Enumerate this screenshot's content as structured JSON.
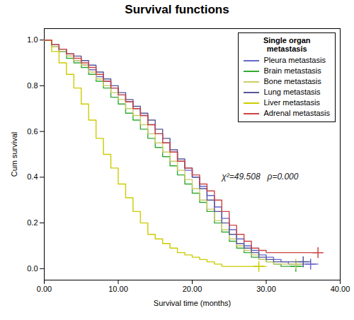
{
  "chart_data": {
    "type": "step",
    "title": "Survival functions",
    "xlabel": "Survival time (months)",
    "ylabel": "Cum survival",
    "xlim": [
      0,
      40
    ],
    "ylim": [
      -0.05,
      1.05
    ],
    "xticks": [
      {
        "value": 0,
        "label": "0.00"
      },
      {
        "value": 10,
        "label": "10.00"
      },
      {
        "value": 20,
        "label": "20.00"
      },
      {
        "value": 30,
        "label": "30.00"
      },
      {
        "value": 40,
        "label": "40.00"
      }
    ],
    "yticks": [
      {
        "value": 0,
        "label": "0.0"
      },
      0.2,
      0.4,
      0.6,
      0.8,
      {
        "value": 1,
        "label": "1.0"
      }
    ],
    "annotation": "χ²=49.508   ρ=0.000",
    "legend_title": "Single organ\nmetastasis",
    "legend": "upper right",
    "grid": false,
    "series": [
      {
        "name": "Pleura metastasis",
        "color": "#6666cc",
        "marker": "plus",
        "x": [
          0,
          1,
          2,
          3,
          4,
          5,
          6,
          7,
          8,
          9,
          10,
          11,
          12,
          13,
          14,
          15,
          16,
          17,
          18,
          19,
          20,
          21,
          22,
          23,
          24,
          25,
          26,
          27,
          28,
          29,
          30,
          31,
          32,
          33,
          34,
          35,
          36,
          37
        ],
        "values": [
          1.0,
          0.97,
          0.95,
          0.93,
          0.91,
          0.89,
          0.87,
          0.84,
          0.82,
          0.79,
          0.76,
          0.73,
          0.7,
          0.67,
          0.63,
          0.59,
          0.55,
          0.51,
          0.47,
          0.43,
          0.4,
          0.36,
          0.32,
          0.27,
          0.22,
          0.17,
          0.13,
          0.1,
          0.08,
          0.06,
          0.05,
          0.04,
          0.03,
          0.02,
          0.02,
          0.02,
          0.02,
          0.02
        ],
        "censor_x": [
          36
        ],
        "censor_values": [
          0.02
        ]
      },
      {
        "name": "Brain metastasis",
        "color": "#33aa33",
        "marker": "plus",
        "x": [
          0,
          1,
          2,
          3,
          4,
          5,
          6,
          7,
          8,
          9,
          10,
          11,
          12,
          13,
          14,
          15,
          16,
          17,
          18,
          19,
          20,
          21,
          22,
          23,
          24,
          25,
          26,
          27,
          28,
          29,
          30,
          31,
          32,
          33,
          34,
          35
        ],
        "values": [
          1.0,
          0.97,
          0.95,
          0.92,
          0.9,
          0.88,
          0.85,
          0.82,
          0.79,
          0.75,
          0.72,
          0.68,
          0.65,
          0.61,
          0.57,
          0.53,
          0.49,
          0.45,
          0.41,
          0.37,
          0.33,
          0.29,
          0.25,
          0.2,
          0.16,
          0.12,
          0.09,
          0.07,
          0.05,
          0.04,
          0.03,
          0.02,
          0.01,
          0.01,
          0.01,
          0.01
        ],
        "censor_x": [
          34
        ],
        "censor_values": [
          0.01
        ]
      },
      {
        "name": "Bone metastasis",
        "color": "#cccc66",
        "marker": "plus",
        "x": [
          0,
          1,
          2,
          3,
          4,
          5,
          6,
          7,
          8,
          9,
          10,
          11,
          12,
          13,
          14,
          15,
          16,
          17,
          18,
          19,
          20,
          21,
          22,
          23,
          24,
          25,
          26,
          27,
          28,
          29,
          30,
          31,
          32,
          33,
          34,
          35
        ],
        "values": [
          1.0,
          0.97,
          0.95,
          0.93,
          0.91,
          0.89,
          0.86,
          0.83,
          0.8,
          0.77,
          0.74,
          0.7,
          0.67,
          0.63,
          0.59,
          0.55,
          0.51,
          0.47,
          0.43,
          0.39,
          0.35,
          0.3,
          0.26,
          0.21,
          0.17,
          0.13,
          0.1,
          0.08,
          0.06,
          0.04,
          0.03,
          0.02,
          0.02,
          0.02,
          0.02,
          0.02
        ],
        "censor_x": [
          34
        ],
        "censor_values": [
          0.02
        ]
      },
      {
        "name": "Lung metastasis",
        "color": "#555599",
        "marker": "plus",
        "x": [
          0,
          1,
          2,
          3,
          4,
          5,
          6,
          7,
          8,
          9,
          10,
          11,
          12,
          13,
          14,
          15,
          16,
          17,
          18,
          19,
          20,
          21,
          22,
          23,
          24,
          25,
          26,
          27,
          28,
          29,
          30,
          31,
          32,
          33,
          34,
          35,
          36
        ],
        "values": [
          1.0,
          0.98,
          0.96,
          0.94,
          0.93,
          0.91,
          0.89,
          0.86,
          0.83,
          0.8,
          0.77,
          0.74,
          0.71,
          0.68,
          0.65,
          0.61,
          0.57,
          0.52,
          0.48,
          0.44,
          0.4,
          0.35,
          0.3,
          0.25,
          0.2,
          0.15,
          0.11,
          0.09,
          0.07,
          0.05,
          0.04,
          0.03,
          0.03,
          0.03,
          0.03,
          0.03,
          0.03
        ],
        "censor_x": [
          35
        ],
        "censor_values": [
          0.03
        ]
      },
      {
        "name": "Liver metastasis",
        "color": "#cccc00",
        "marker": "plus",
        "x": [
          0,
          1,
          2,
          3,
          4,
          5,
          6,
          7,
          8,
          9,
          10,
          11,
          12,
          13,
          14,
          15,
          16,
          17,
          18,
          19,
          20,
          21,
          22,
          23,
          24,
          25,
          26,
          27,
          28,
          29,
          30
        ],
        "values": [
          1.0,
          0.95,
          0.9,
          0.85,
          0.79,
          0.72,
          0.65,
          0.57,
          0.5,
          0.44,
          0.37,
          0.31,
          0.25,
          0.2,
          0.15,
          0.13,
          0.11,
          0.09,
          0.07,
          0.06,
          0.05,
          0.04,
          0.03,
          0.02,
          0.01,
          0.01,
          0.01,
          0.01,
          0.01,
          0.01,
          0.01
        ],
        "censor_x": [
          29
        ],
        "censor_values": [
          0.01
        ]
      },
      {
        "name": "Adrenal metastasis",
        "color": "#cc4444",
        "marker": "plus",
        "x": [
          0,
          1,
          2,
          3,
          4,
          5,
          6,
          7,
          8,
          9,
          10,
          11,
          12,
          13,
          14,
          15,
          16,
          17,
          18,
          19,
          20,
          21,
          22,
          23,
          24,
          25,
          26,
          27,
          28,
          29,
          30,
          31,
          32,
          33,
          34,
          35,
          36,
          37
        ],
        "values": [
          1.0,
          0.98,
          0.96,
          0.94,
          0.92,
          0.9,
          0.88,
          0.85,
          0.82,
          0.79,
          0.76,
          0.73,
          0.7,
          0.67,
          0.63,
          0.59,
          0.55,
          0.51,
          0.47,
          0.44,
          0.41,
          0.37,
          0.34,
          0.3,
          0.25,
          0.19,
          0.15,
          0.12,
          0.09,
          0.08,
          0.07,
          0.07,
          0.07,
          0.07,
          0.07,
          0.07,
          0.07,
          0.07
        ],
        "censor_x": [
          37
        ],
        "censor_values": [
          0.07
        ]
      }
    ]
  }
}
